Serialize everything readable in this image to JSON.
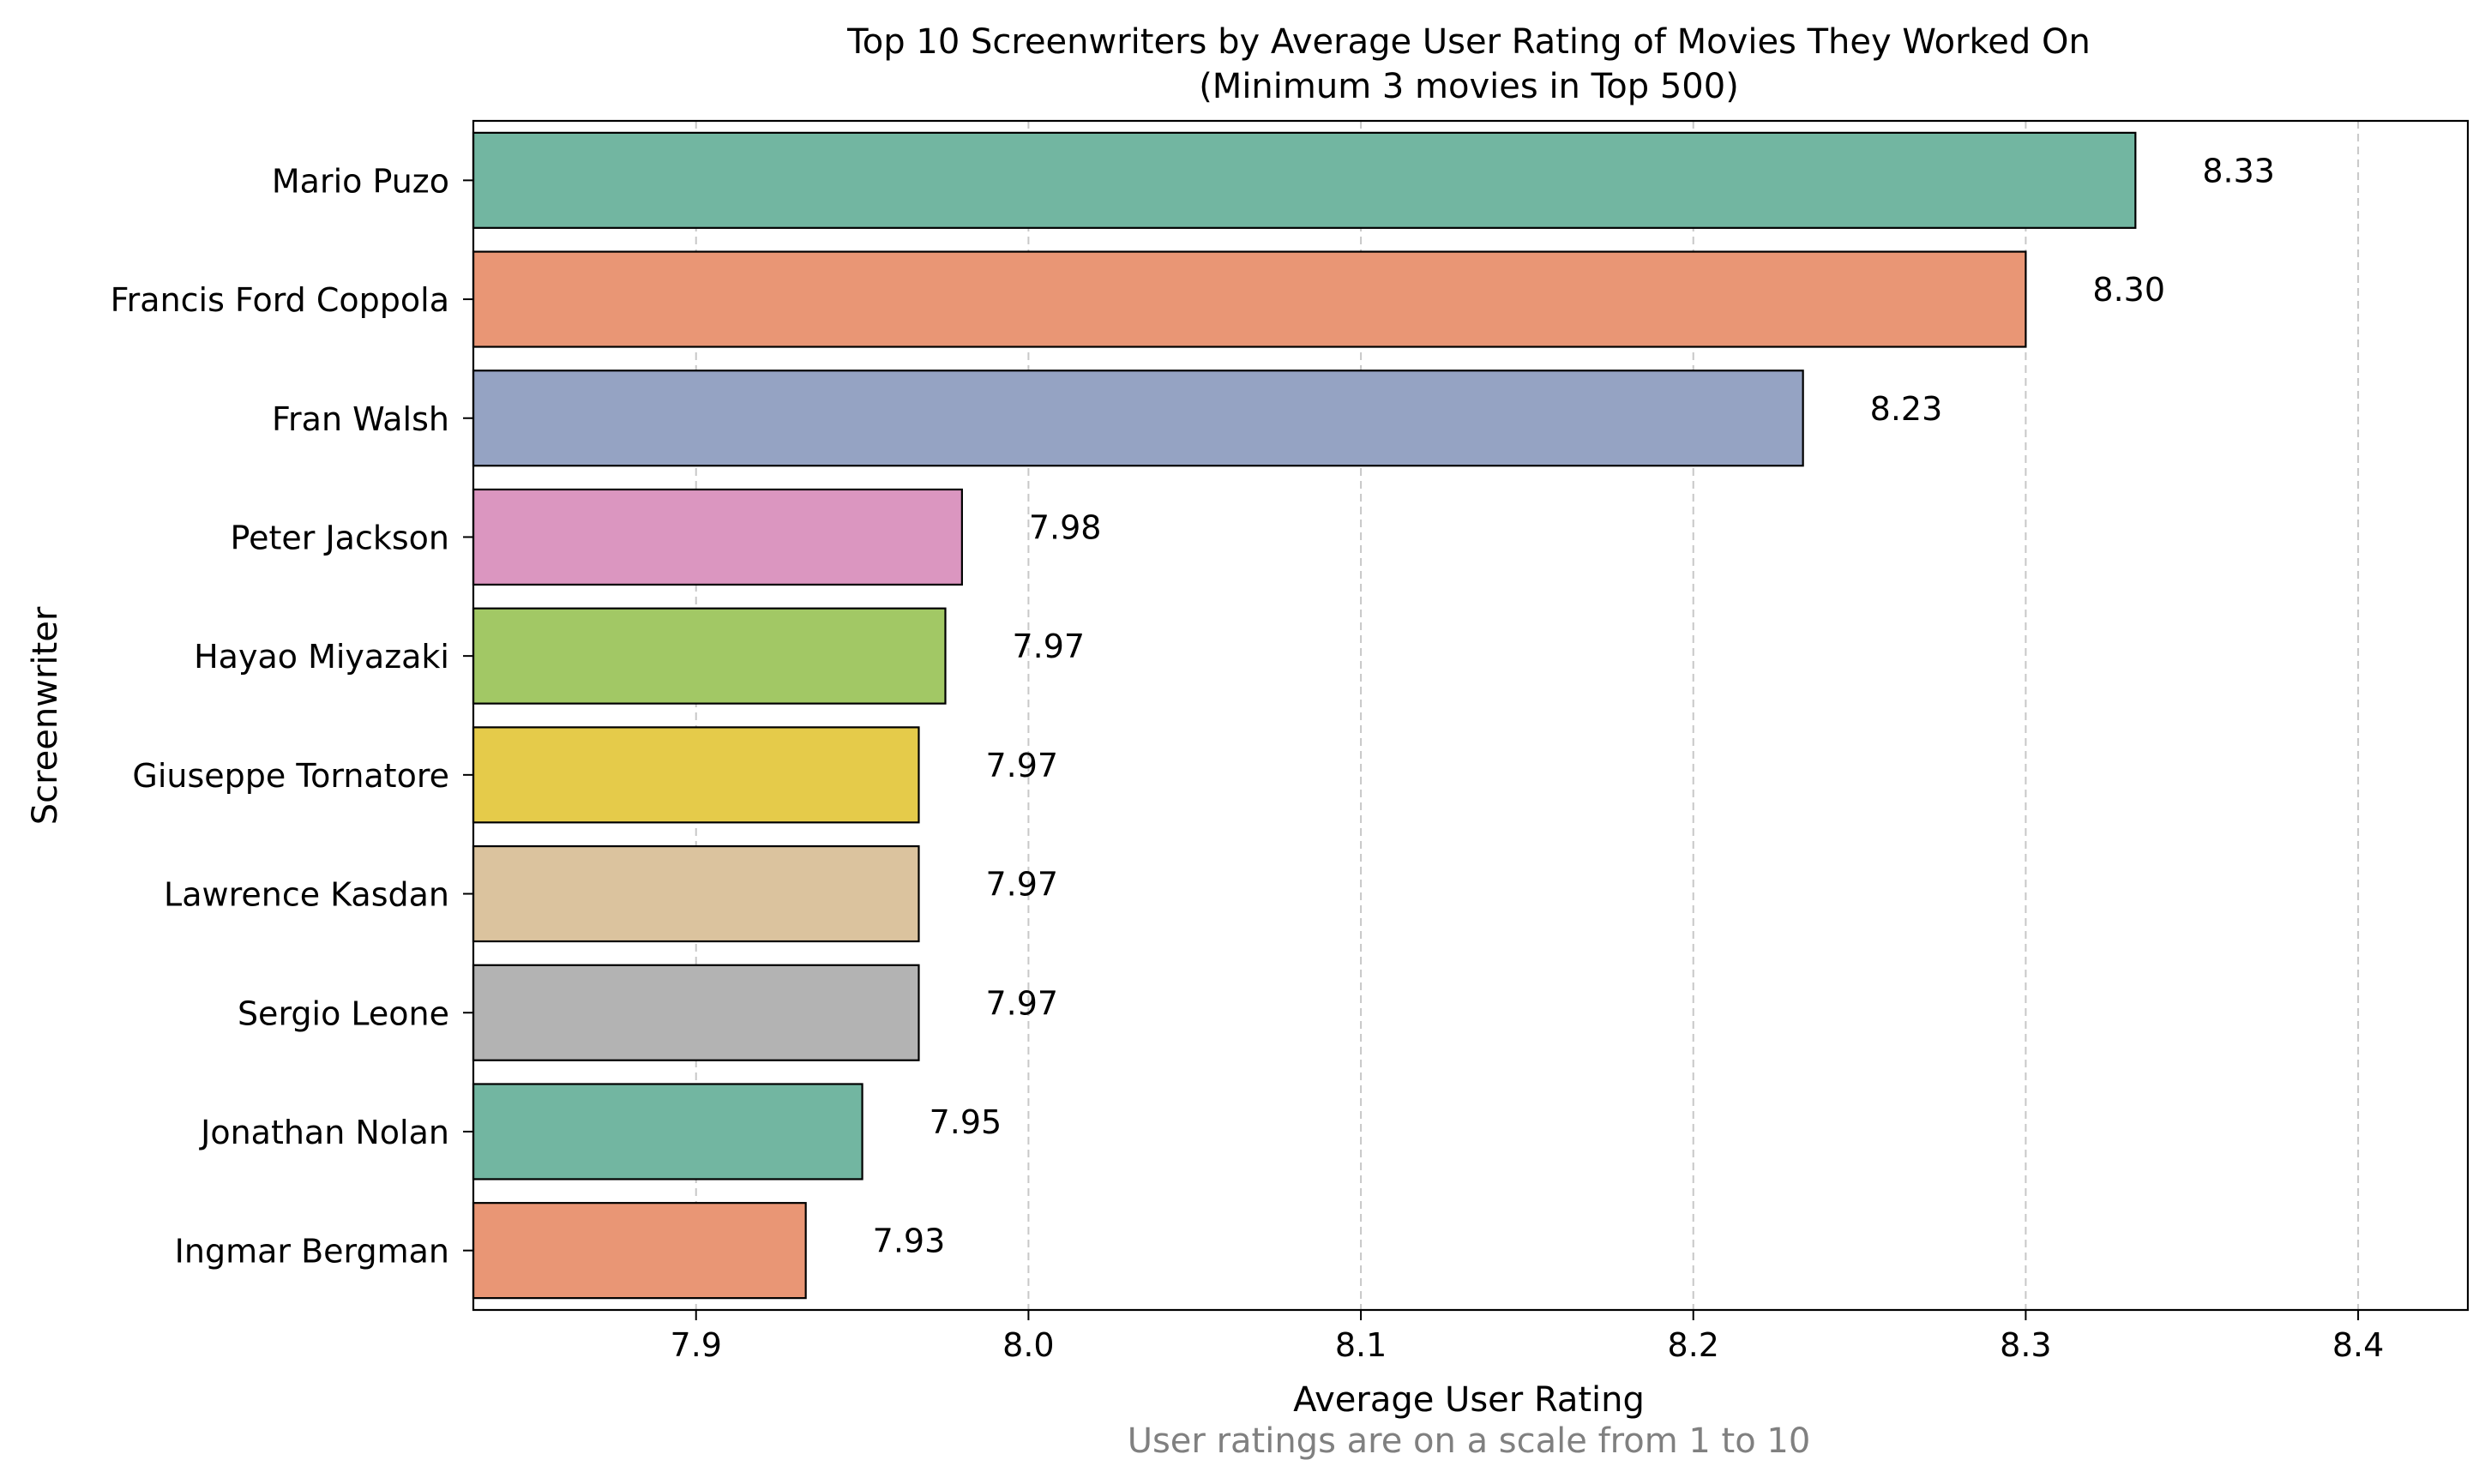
{
  "chart_data": {
    "type": "bar",
    "orientation": "horizontal",
    "title": "Top 10 Screenwriters by Average User Rating of Movies They Worked On",
    "subtitle": "(Minimum 3 movies in Top 500)",
    "xlabel": "Average User Rating",
    "ylabel": "Screenwriter",
    "footnote": "User ratings are on a scale from 1 to 10",
    "xlim": [
      7.833,
      8.433
    ],
    "xticks": [
      "7.9",
      "8.0",
      "8.1",
      "8.2",
      "8.3",
      "8.4"
    ],
    "grid": "x, dashed",
    "categories": [
      "Mario Puzo",
      "Francis Ford Coppola",
      "Fran Walsh",
      "Peter Jackson",
      "Hayao Miyazaki",
      "Giuseppe Tornatore",
      "Lawrence Kasdan",
      "Sergio Leone",
      "Jonathan Nolan",
      "Ingmar Bergman"
    ],
    "values": [
      8.333,
      8.3,
      8.233,
      7.98,
      7.975,
      7.967,
      7.967,
      7.967,
      7.95,
      7.933
    ],
    "value_labels": [
      "8.33",
      "8.30",
      "8.23",
      "7.98",
      "7.97",
      "7.97",
      "7.97",
      "7.97",
      "7.95",
      "7.93"
    ],
    "colors": [
      "#72b6a1",
      "#e99675",
      "#95a3c3",
      "#db96c0",
      "#a2c865",
      "#e5cb4a",
      "#dbc39e",
      "#b3b3b3",
      "#72b6a1",
      "#e99675"
    ]
  }
}
